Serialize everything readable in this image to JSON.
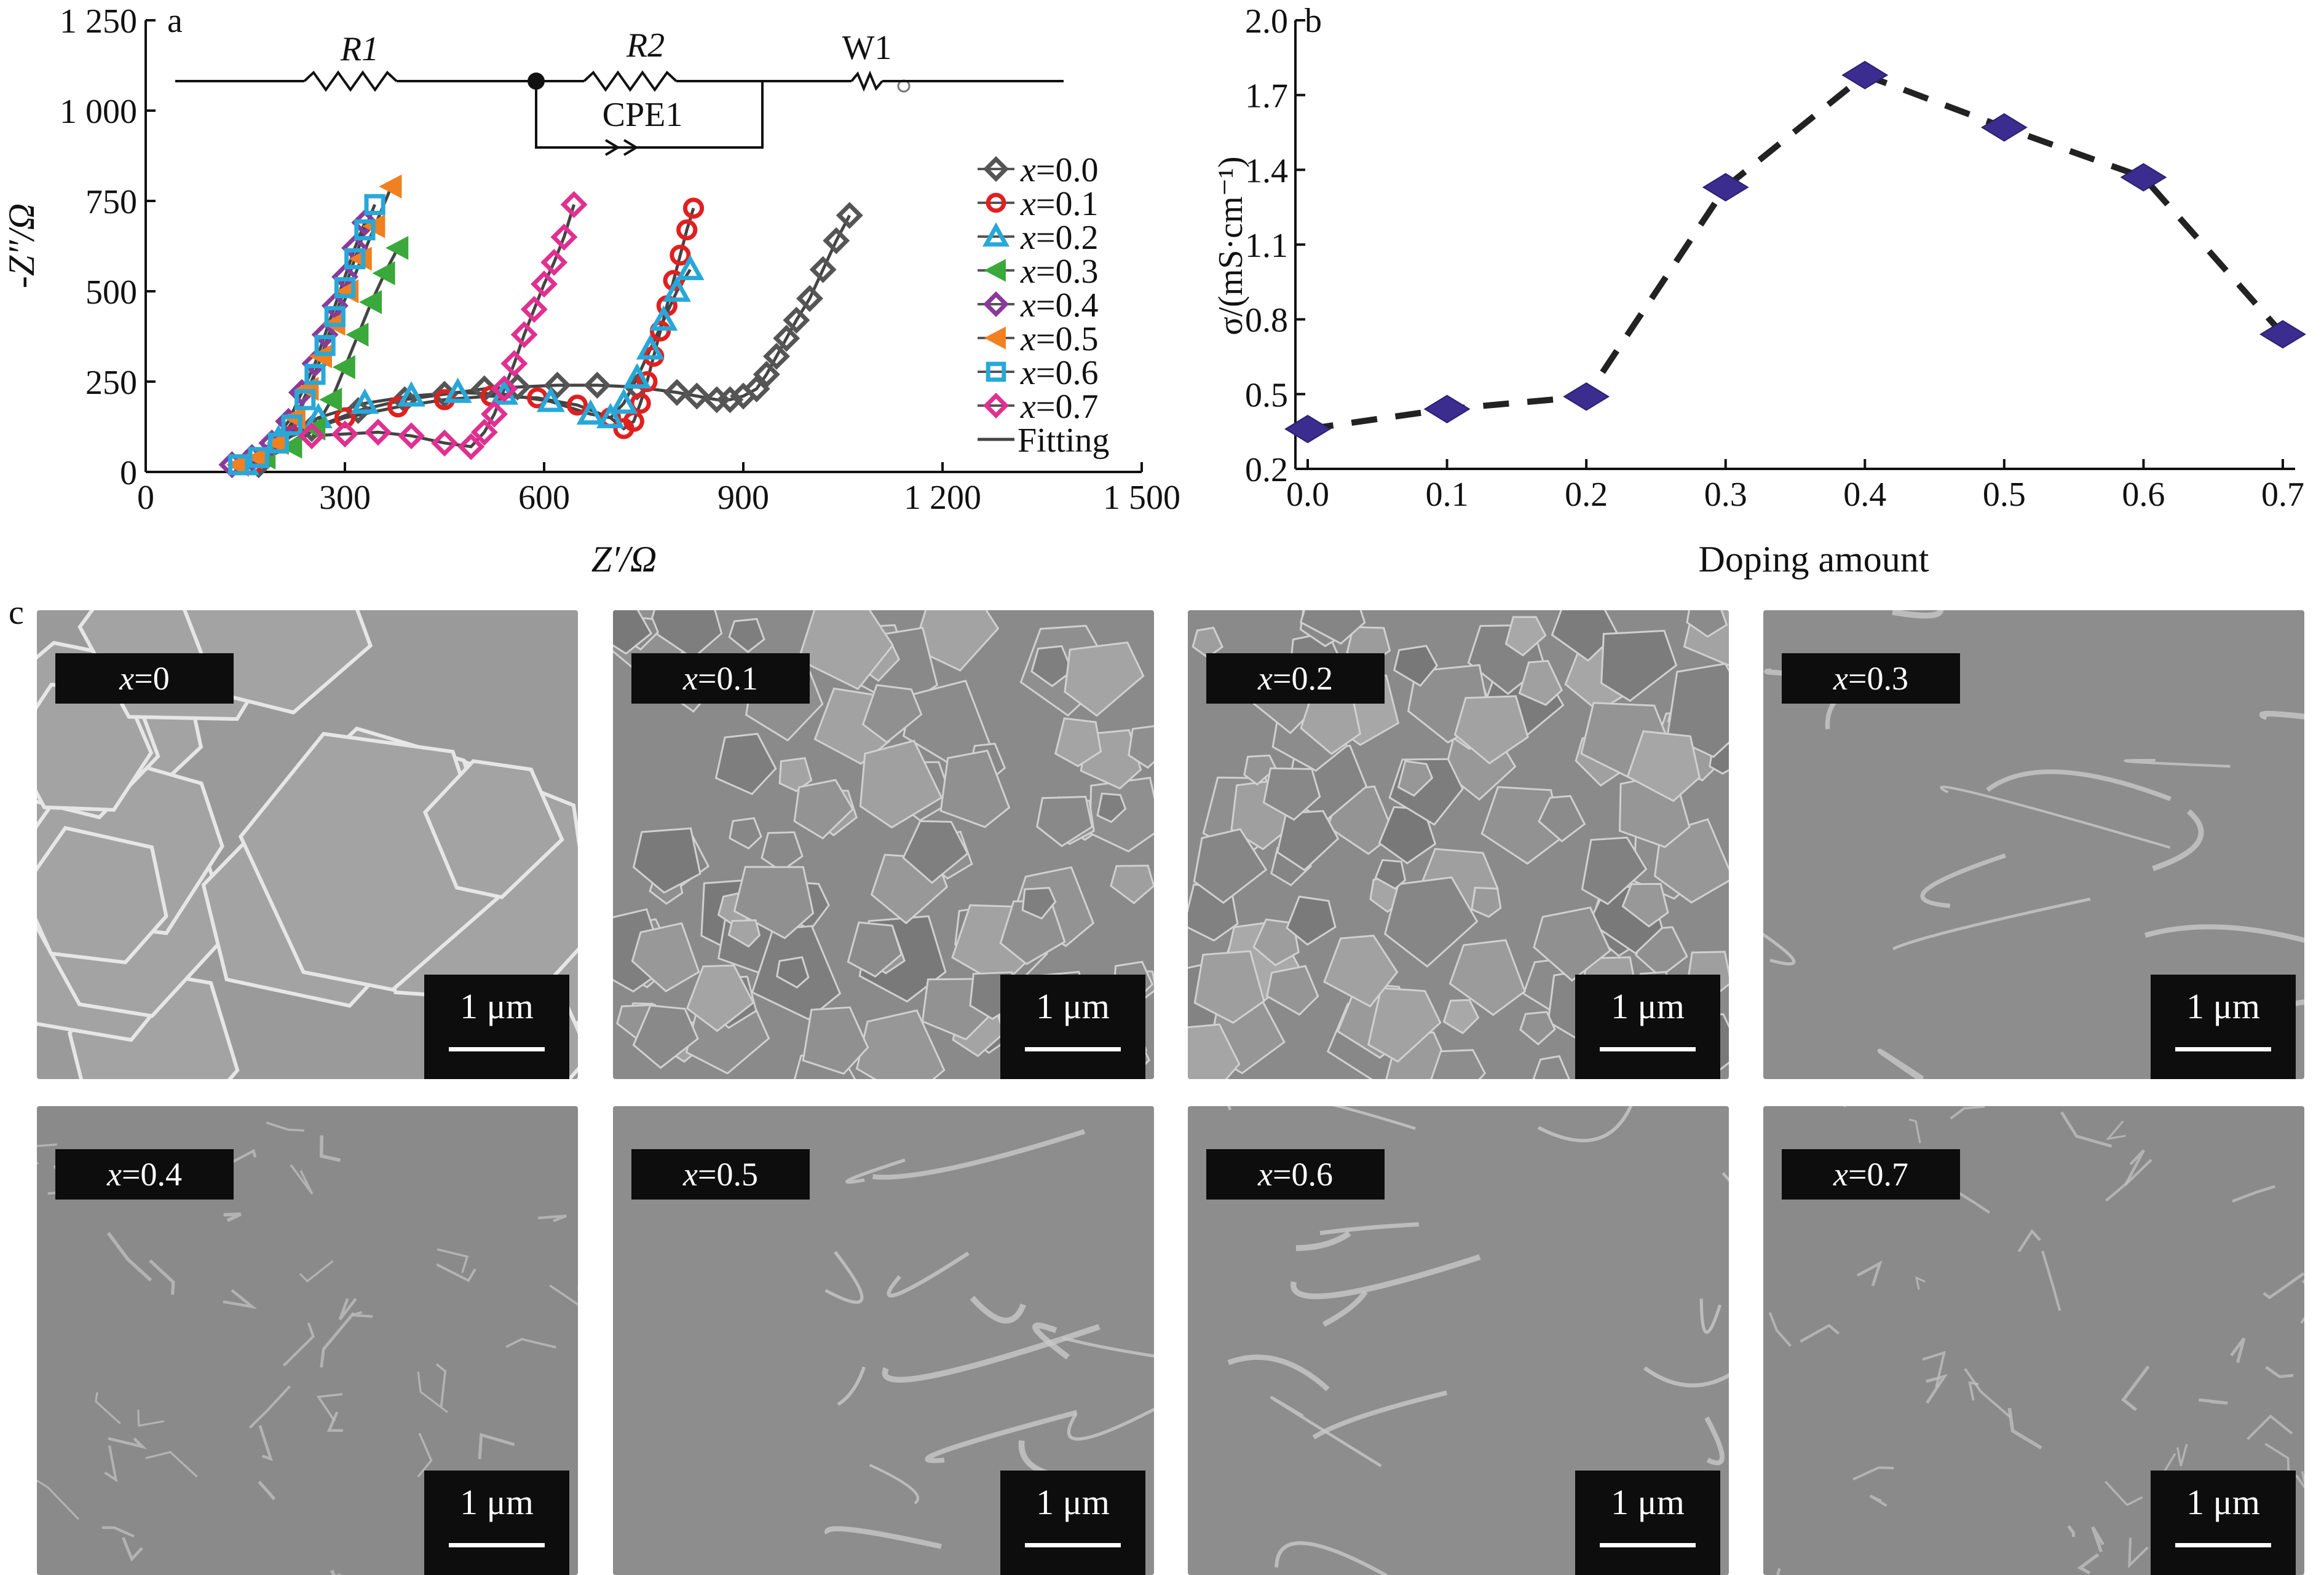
{
  "panel_letters": {
    "a": "a",
    "b": "b",
    "c": "c"
  },
  "circuit": {
    "r1": "R1",
    "r2": "R2",
    "w1": "W1",
    "cpe": "CPE1"
  },
  "chart_data": [
    {
      "panel": "a",
      "type": "scatter",
      "xlabel": "Z′/Ω",
      "ylabel": "-Z″/Ω",
      "xlim": [
        0,
        1500
      ],
      "ylim": [
        0,
        1250
      ],
      "xticks": [
        "0",
        "300",
        "600",
        "900",
        "1 200",
        "1 500"
      ],
      "yticks": [
        "0",
        "250",
        "500",
        "750",
        "1 000",
        "1 250"
      ],
      "legend_position": "right",
      "series": [
        {
          "name": "x=0.0",
          "color": "#555555",
          "marker": "diamond",
          "x": [
            170,
            250,
            320,
            390,
            450,
            510,
            560,
            620,
            680,
            740,
            800,
            830,
            860,
            880,
            900,
            920,
            935,
            950,
            965,
            980,
            1000,
            1020,
            1040,
            1060
          ],
          "y": [
            20,
            120,
            170,
            200,
            215,
            230,
            235,
            240,
            240,
            235,
            220,
            210,
            200,
            200,
            210,
            230,
            270,
            320,
            370,
            420,
            480,
            560,
            640,
            710
          ]
        },
        {
          "name": "x=0.1",
          "color": "#e02020",
          "marker": "circle",
          "x": [
            160,
            220,
            300,
            380,
            450,
            520,
            590,
            650,
            700,
            720,
            735,
            745,
            755,
            765,
            775,
            785,
            795,
            805,
            815,
            825
          ],
          "y": [
            20,
            100,
            150,
            180,
            200,
            210,
            205,
            185,
            150,
            120,
            140,
            190,
            250,
            320,
            390,
            460,
            530,
            600,
            670,
            730
          ]
        },
        {
          "name": "x=0.2",
          "color": "#28a8d8",
          "marker": "triangle",
          "x": [
            150,
            200,
            260,
            330,
            400,
            470,
            540,
            610,
            670,
            700,
            720,
            740,
            760,
            780,
            800,
            820
          ],
          "y": [
            20,
            90,
            150,
            190,
            210,
            220,
            215,
            195,
            160,
            150,
            190,
            260,
            340,
            420,
            500,
            560
          ]
        },
        {
          "name": "x=0.3",
          "color": "#3aa83a",
          "marker": "triangle-left",
          "x": [
            140,
            180,
            220,
            255,
            280,
            300,
            320,
            340,
            360,
            380
          ],
          "y": [
            20,
            40,
            70,
            120,
            200,
            290,
            380,
            470,
            550,
            620
          ]
        },
        {
          "name": "x=0.4",
          "color": "#8a3a9a",
          "marker": "diamond",
          "x": [
            130,
            160,
            190,
            215,
            235,
            255,
            270,
            285,
            300,
            315,
            330
          ],
          "y": [
            20,
            40,
            80,
            140,
            220,
            300,
            380,
            460,
            540,
            620,
            690
          ]
        },
        {
          "name": "x=0.5",
          "color": "#f08020",
          "marker": "triangle-left",
          "x": [
            140,
            170,
            200,
            225,
            245,
            265,
            285,
            305,
            325,
            345,
            370
          ],
          "y": [
            20,
            40,
            80,
            150,
            230,
            320,
            410,
            500,
            590,
            680,
            790
          ]
        },
        {
          "name": "x=0.6",
          "color": "#28a8d8",
          "marker": "square",
          "x": [
            140,
            170,
            200,
            220,
            240,
            255,
            270,
            285,
            300,
            315,
            330,
            345
          ],
          "y": [
            20,
            40,
            80,
            130,
            200,
            270,
            350,
            430,
            510,
            590,
            670,
            740
          ]
        },
        {
          "name": "x=0.7",
          "color": "#e03090",
          "marker": "diamond",
          "x": [
            250,
            300,
            350,
            400,
            450,
            490,
            510,
            525,
            540,
            555,
            570,
            585,
            600,
            615,
            630,
            645
          ],
          "y": [
            100,
            105,
            110,
            100,
            80,
            70,
            110,
            160,
            230,
            300,
            380,
            450,
            520,
            580,
            650,
            740
          ]
        },
        {
          "name": "Fitting",
          "color": "#444444",
          "marker": "line"
        }
      ]
    },
    {
      "panel": "b",
      "type": "line",
      "xlabel": "Doping amount",
      "ylabel": "σ/(mS·cm⁻¹)",
      "xlim": [
        0.0,
        0.7
      ],
      "ylim": [
        0.2,
        2.0
      ],
      "xticks": [
        "0.0",
        "0.1",
        "0.2",
        "0.3",
        "0.4",
        "0.5",
        "0.6",
        "0.7"
      ],
      "yticks": [
        "0.2",
        "0.5",
        "0.8",
        "1.1",
        "1.4",
        "1.7",
        "2.0"
      ],
      "marker_color": "#3b2d8f",
      "line_style": "dashed",
      "x": [
        0.0,
        0.1,
        0.2,
        0.3,
        0.4,
        0.5,
        0.6,
        0.7
      ],
      "y": [
        0.36,
        0.44,
        0.49,
        1.33,
        1.78,
        1.57,
        1.37,
        0.74
      ]
    }
  ],
  "sem_images": [
    {
      "label_var": "x",
      "label_val": "=0",
      "scale": "1 μm",
      "texture": "grains"
    },
    {
      "label_var": "x",
      "label_val": "=0.1",
      "scale": "1 μm",
      "texture": "fine"
    },
    {
      "label_var": "x",
      "label_val": "=0.2",
      "scale": "1 μm",
      "texture": "fine"
    },
    {
      "label_var": "x",
      "label_val": "=0.3",
      "scale": "1 μm",
      "texture": "smooth"
    },
    {
      "label_var": "x",
      "label_val": "=0.4",
      "scale": "1 μm",
      "texture": "rough"
    },
    {
      "label_var": "x",
      "label_val": "=0.5",
      "scale": "1 μm",
      "texture": "smooth"
    },
    {
      "label_var": "x",
      "label_val": "=0.6",
      "scale": "1 μm",
      "texture": "smooth"
    },
    {
      "label_var": "x",
      "label_val": "=0.7",
      "scale": "1 μm",
      "texture": "rough"
    }
  ]
}
